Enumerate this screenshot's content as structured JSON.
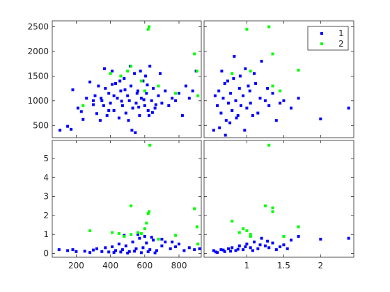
{
  "figure": {
    "background": "#ffffff",
    "axes_color": "#262626"
  },
  "legend": {
    "placement": "top-right of upper-right panel",
    "entries": [
      "1",
      "2"
    ]
  },
  "chart_data": {
    "type": "scatter",
    "layout": "2x2 scatter matrix",
    "series": [
      {
        "name": "1",
        "color": "#0000ff",
        "marker": "square"
      },
      {
        "name": "2",
        "color": "#00ff00",
        "marker": "square"
      }
    ],
    "x_axes": [
      {
        "column": 1,
        "ticks": [
          200,
          400,
          600,
          800
        ],
        "tick_labels": [
          "200",
          "400",
          "600",
          "800"
        ],
        "range": [
          60,
          930
        ]
      },
      {
        "column": 2,
        "ticks": [
          1,
          1.5,
          2
        ],
        "tick_labels": [
          "1",
          "1.5",
          "2"
        ],
        "range": [
          0.42,
          2.45
        ]
      }
    ],
    "y_axes": [
      {
        "row": 1,
        "ticks": [
          500,
          1000,
          1500,
          2000,
          2500
        ],
        "tick_labels": [
          "500",
          "1000",
          "1500",
          "2000",
          "2500"
        ],
        "range": [
          250,
          2620
        ]
      },
      {
        "row": 2,
        "ticks": [
          0,
          1,
          2,
          3,
          4,
          5
        ],
        "tick_labels": [
          "0",
          "1",
          "2",
          "3",
          "4",
          "5"
        ],
        "range": [
          -0.2,
          5.95
        ]
      }
    ],
    "grid": false,
    "panels": [
      {
        "id": "top-left",
        "row": 1,
        "col": 1,
        "points": {
          "1": [
            [
              105,
              400
            ],
            [
              150,
              480
            ],
            [
              170,
              420
            ],
            [
              180,
              1220
            ],
            [
              210,
              850
            ],
            [
              230,
              780
            ],
            [
              240,
              620
            ],
            [
              260,
              1050
            ],
            [
              280,
              1380
            ],
            [
              300,
              920
            ],
            [
              310,
              1100
            ],
            [
              320,
              740
            ],
            [
              330,
              1300
            ],
            [
              340,
              600
            ],
            [
              350,
              1000
            ],
            [
              360,
              900
            ],
            [
              370,
              1250
            ],
            [
              380,
              700
            ],
            [
              390,
              1150
            ],
            [
              400,
              950
            ],
            [
              410,
              1600
            ],
            [
              420,
              800
            ],
            [
              430,
              1350
            ],
            [
              440,
              1050
            ],
            [
              450,
              650
            ],
            [
              460,
              1200
            ],
            [
              470,
              900
            ],
            [
              480,
              1450
            ],
            [
              490,
              750
            ],
            [
              500,
              1100
            ],
            [
              510,
              1000
            ],
            [
              520,
              1300
            ],
            [
              530,
              850
            ],
            [
              540,
              1550
            ],
            [
              550,
              950
            ],
            [
              560,
              1200
            ],
            [
              570,
              700
            ],
            [
              580,
              1050
            ],
            [
              590,
              1400
            ],
            [
              600,
              900
            ],
            [
              610,
              1150
            ],
            [
              620,
              800
            ],
            [
              630,
              1700
            ],
            [
              640,
              1000
            ],
            [
              650,
              1250
            ],
            [
              660,
              850
            ],
            [
              680,
              1100
            ],
            [
              700,
              950
            ],
            [
              720,
              1200
            ],
            [
              740,
              900
            ],
            [
              760,
              1050
            ],
            [
              780,
              1000
            ],
            [
              800,
              1150
            ],
            [
              820,
              700
            ],
            [
              840,
              1300
            ],
            [
              860,
              1050
            ],
            [
              880,
              1200
            ],
            [
              900,
              1600
            ],
            [
              300,
              1000
            ],
            [
              345,
              1050
            ],
            [
              390,
              800
            ],
            [
              420,
              1100
            ],
            [
              455,
              1400
            ],
            [
              505,
              600
            ],
            [
              525,
              400
            ],
            [
              555,
              1150
            ],
            [
              575,
              1600
            ],
            [
              605,
              1500
            ],
            [
              625,
              700
            ],
            [
              365,
              1650
            ],
            [
              410,
              1330
            ],
            [
              465,
              990
            ],
            [
              485,
              1220
            ],
            [
              515,
              1700
            ],
            [
              545,
              350
            ],
            [
              565,
              870
            ],
            [
              595,
              1020
            ],
            [
              615,
              1320
            ],
            [
              645,
              760
            ],
            [
              665,
              920
            ],
            [
              690,
              1550
            ]
          ],
          "2": [
            [
              240,
              900
            ],
            [
              400,
              1550
            ],
            [
              460,
              1500
            ],
            [
              500,
              1600
            ],
            [
              520,
              1700
            ],
            [
              580,
              1400
            ],
            [
              600,
              1200
            ],
            [
              620,
              2450
            ],
            [
              625,
              2500
            ],
            [
              680,
              1300
            ],
            [
              780,
              1150
            ],
            [
              890,
              1950
            ],
            [
              905,
              1600
            ],
            [
              910,
              1100
            ]
          ]
        }
      },
      {
        "id": "top-right",
        "row": 1,
        "col": 2,
        "points": {
          "1": [
            [
              0.55,
              400
            ],
            [
              0.6,
              900
            ],
            [
              0.62,
              1200
            ],
            [
              0.65,
              750
            ],
            [
              0.68,
              1050
            ],
            [
              0.7,
              1350
            ],
            [
              0.72,
              600
            ],
            [
              0.75,
              950
            ],
            [
              0.78,
              1150
            ],
            [
              0.8,
              800
            ],
            [
              0.82,
              1450
            ],
            [
              0.85,
              1000
            ],
            [
              0.88,
              700
            ],
            [
              0.9,
              1250
            ],
            [
              0.92,
              900
            ],
            [
              0.95,
              1100
            ],
            [
              0.98,
              1650
            ],
            [
              1.0,
              850
            ],
            [
              1.02,
              1300
            ],
            [
              1.05,
              950
            ],
            [
              1.1,
              1550
            ],
            [
              1.15,
              750
            ],
            [
              1.2,
              1800
            ],
            [
              1.25,
              1000
            ],
            [
              1.3,
              900
            ],
            [
              1.35,
              1150
            ],
            [
              1.4,
              600
            ],
            [
              1.5,
              1000
            ],
            [
              1.6,
              850
            ],
            [
              1.7,
              1050
            ],
            [
              2.0,
              630
            ],
            [
              2.38,
              850
            ],
            [
              0.57,
              1100
            ],
            [
              0.63,
              450
            ],
            [
              0.66,
              1600
            ],
            [
              0.71,
              300
            ],
            [
              0.74,
              1400
            ],
            [
              0.77,
              550
            ],
            [
              0.83,
              1900
            ],
            [
              0.86,
              650
            ],
            [
              0.91,
              1500
            ],
            [
              0.97,
              400
            ],
            [
              1.04,
              1200
            ],
            [
              1.08,
              700
            ],
            [
              1.12,
              1350
            ],
            [
              1.18,
              1050
            ],
            [
              1.28,
              1250
            ],
            [
              1.45,
              950
            ]
          ],
          "2": [
            [
              0.8,
              1550
            ],
            [
              1.0,
              2450
            ],
            [
              1.05,
              1600
            ],
            [
              1.3,
              2500
            ],
            [
              1.35,
              1950
            ],
            [
              1.35,
              1300
            ],
            [
              1.45,
              1200
            ],
            [
              1.7,
              1620
            ]
          ]
        }
      },
      {
        "id": "bottom-left",
        "row": 2,
        "col": 1,
        "points": {
          "1": [
            [
              100,
              0.2
            ],
            [
              150,
              0.15
            ],
            [
              180,
              0.2
            ],
            [
              200,
              0.1
            ],
            [
              250,
              0.12
            ],
            [
              280,
              0.05
            ],
            [
              300,
              0.18
            ],
            [
              320,
              0.25
            ],
            [
              350,
              0.1
            ],
            [
              370,
              0.3
            ],
            [
              390,
              0.08
            ],
            [
              410,
              0.35
            ],
            [
              430,
              0.15
            ],
            [
              450,
              0.5
            ],
            [
              470,
              0.2
            ],
            [
              490,
              0.4
            ],
            [
              510,
              0.1
            ],
            [
              530,
              0.6
            ],
            [
              550,
              0.25
            ],
            [
              570,
              0.8
            ],
            [
              590,
              0.3
            ],
            [
              610,
              0.55
            ],
            [
              630,
              0.2
            ],
            [
              650,
              0.7
            ],
            [
              670,
              0.15
            ],
            [
              700,
              0.4
            ],
            [
              720,
              0.6
            ],
            [
              750,
              0.25
            ],
            [
              780,
              0.35
            ],
            [
              800,
              0.5
            ],
            [
              830,
              0.15
            ],
            [
              860,
              0.3
            ],
            [
              890,
              0.2
            ],
            [
              920,
              0.25
            ],
            [
              420,
              0.05
            ],
            [
              460,
              0.08
            ],
            [
              500,
              0.02
            ],
            [
              540,
              0.12
            ],
            [
              580,
              0.04
            ],
            [
              620,
              0.09
            ],
            [
              660,
              0.03
            ],
            [
              480,
              0.95
            ],
            [
              560,
              1.0
            ],
            [
              600,
              0.9
            ],
            [
              640,
              0.85
            ],
            [
              700,
              0.75
            ],
            [
              760,
              0.6
            ]
          ],
          "2": [
            [
              280,
              1.2
            ],
            [
              410,
              1.1
            ],
            [
              450,
              1.05
            ],
            [
              480,
              0.9
            ],
            [
              520,
              1.0
            ],
            [
              560,
              1.1
            ],
            [
              580,
              1.05
            ],
            [
              600,
              1.3
            ],
            [
              610,
              1.6
            ],
            [
              620,
              2.1
            ],
            [
              625,
              2.2
            ],
            [
              630,
              5.7
            ],
            [
              520,
              2.5
            ],
            [
              680,
              0.75
            ],
            [
              780,
              0.95
            ],
            [
              890,
              2.35
            ],
            [
              905,
              1.4
            ],
            [
              910,
              0.5
            ]
          ]
        }
      },
      {
        "id": "bottom-right",
        "row": 2,
        "col": 2,
        "points": {
          "1": [
            [
              0.55,
              0.15
            ],
            [
              0.6,
              0.05
            ],
            [
              0.65,
              0.2
            ],
            [
              0.7,
              0.1
            ],
            [
              0.75,
              0.25
            ],
            [
              0.8,
              0.3
            ],
            [
              0.85,
              0.15
            ],
            [
              0.9,
              0.4
            ],
            [
              0.95,
              0.2
            ],
            [
              1.0,
              0.5
            ],
            [
              1.05,
              0.3
            ],
            [
              1.1,
              0.6
            ],
            [
              1.15,
              0.25
            ],
            [
              1.2,
              0.8
            ],
            [
              1.25,
              0.4
            ],
            [
              1.3,
              0.3
            ],
            [
              1.35,
              0.55
            ],
            [
              1.4,
              0.2
            ],
            [
              1.5,
              0.45
            ],
            [
              1.6,
              0.7
            ],
            [
              1.7,
              0.9
            ],
            [
              2.0,
              0.75
            ],
            [
              2.38,
              0.8
            ],
            [
              0.58,
              0.08
            ],
            [
              0.68,
              0.18
            ],
            [
              0.78,
              0.12
            ],
            [
              0.88,
              0.22
            ],
            [
              0.98,
              0.35
            ],
            [
              1.08,
              0.15
            ],
            [
              1.18,
              0.45
            ],
            [
              1.28,
              0.65
            ],
            [
              1.45,
              0.35
            ],
            [
              1.55,
              0.25
            ]
          ],
          "2": [
            [
              0.8,
              1.7
            ],
            [
              0.9,
              1.1
            ],
            [
              0.95,
              1.3
            ],
            [
              1.0,
              1.2
            ],
            [
              1.05,
              1.0
            ],
            [
              1.25,
              2.5
            ],
            [
              1.3,
              5.7
            ],
            [
              1.35,
              2.2
            ],
            [
              1.35,
              2.4
            ],
            [
              1.5,
              0.9
            ],
            [
              1.7,
              1.4
            ],
            [
              1.05,
              0.9
            ]
          ]
        }
      }
    ]
  }
}
